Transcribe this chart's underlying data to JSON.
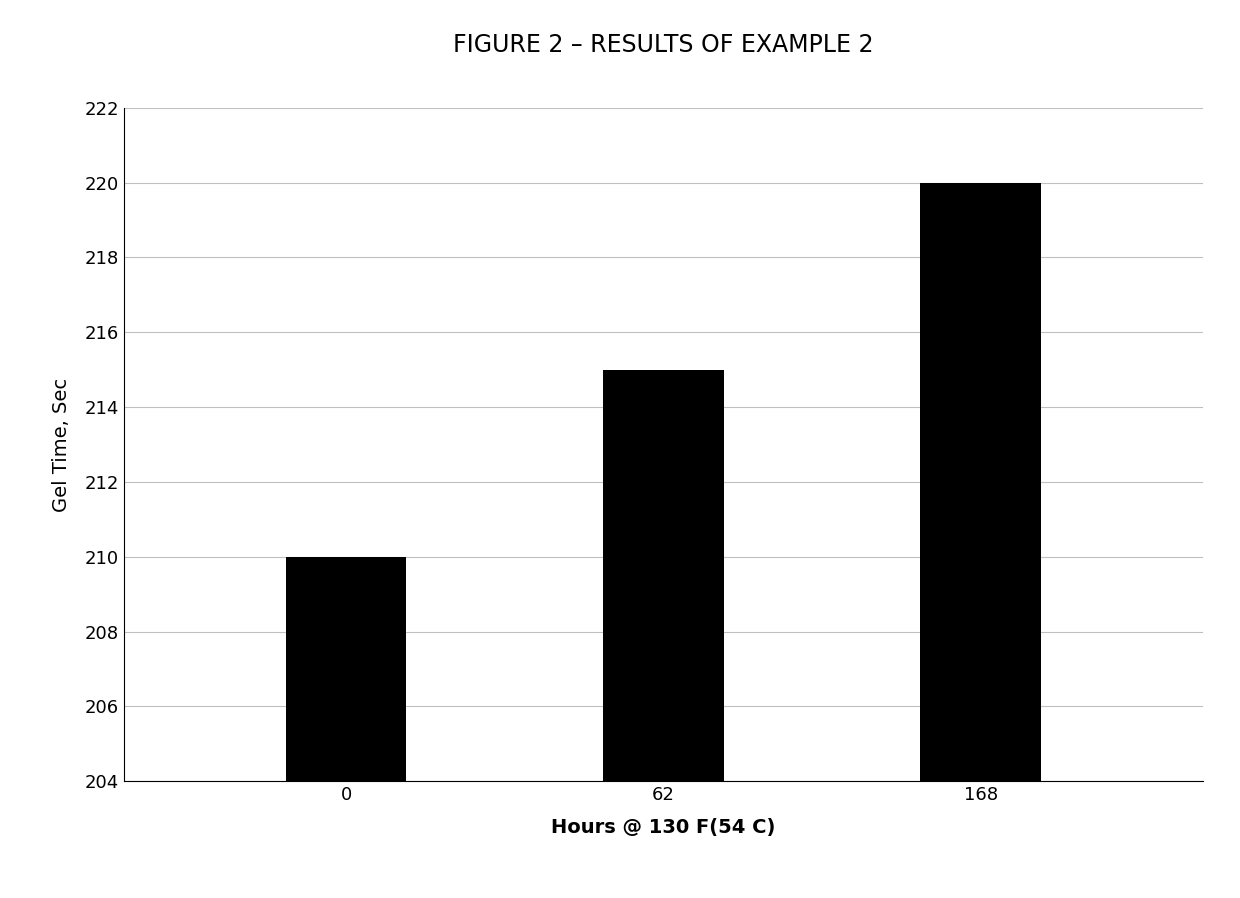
{
  "title": "FIGURE 2 – RESULTS OF EXAMPLE 2",
  "categories": [
    "0",
    "62",
    "168"
  ],
  "values": [
    210,
    215,
    220
  ],
  "bar_color": "#000000",
  "ylabel": "Gel Time, Sec",
  "xlabel": "Hours @ 130 F(54 C)",
  "ylim": [
    204,
    222
  ],
  "yticks": [
    204,
    206,
    208,
    210,
    212,
    214,
    216,
    218,
    220,
    222
  ],
  "background_color": "#ffffff",
  "title_fontsize": 17,
  "axis_label_fontsize": 14,
  "tick_fontsize": 13,
  "bar_width": 0.38
}
